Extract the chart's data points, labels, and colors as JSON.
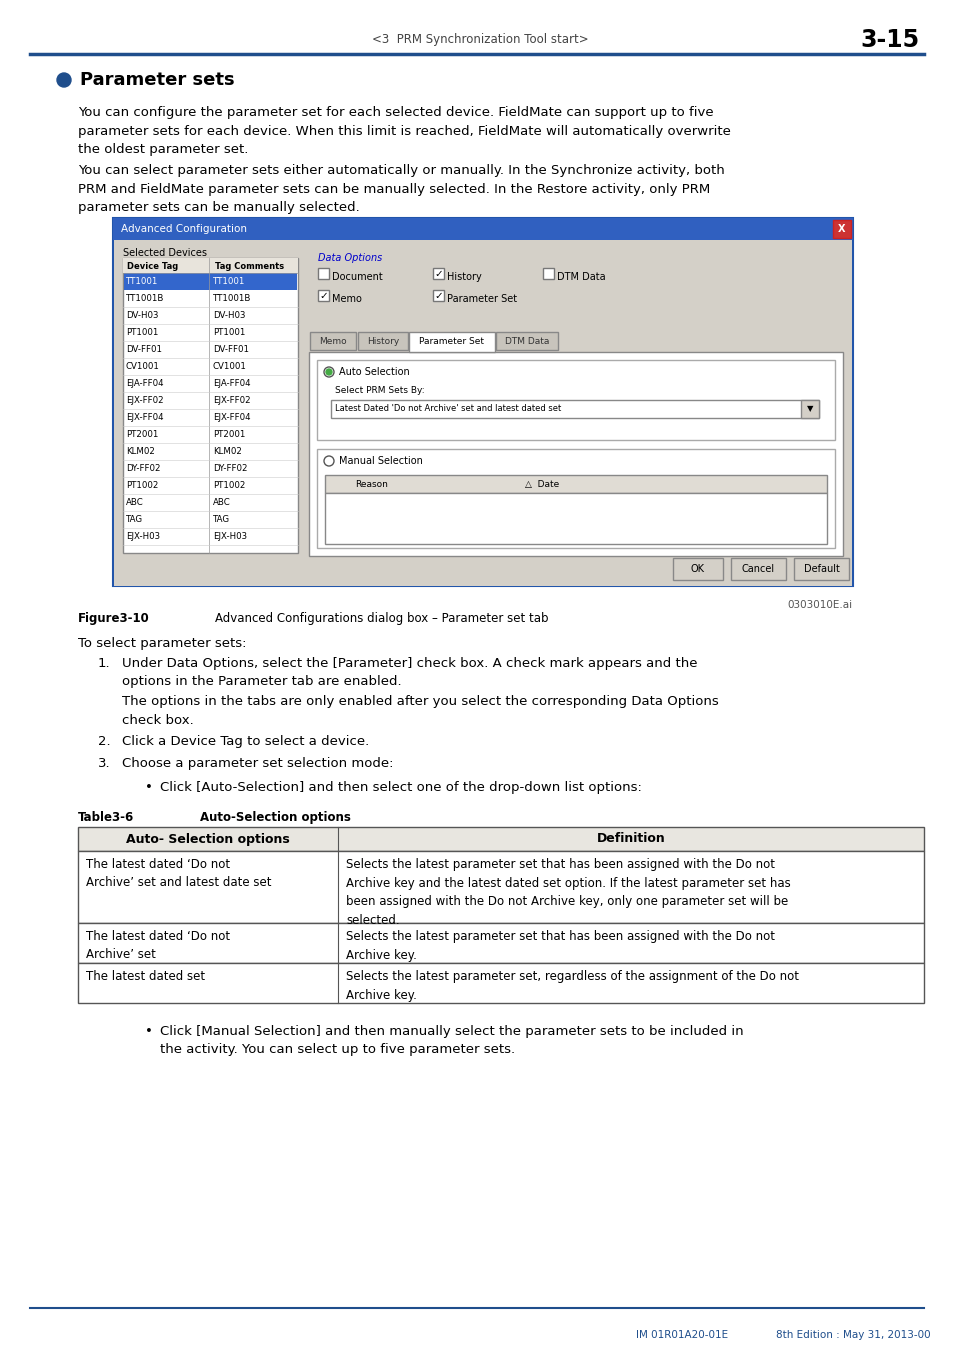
{
  "page_header_center": "<3  PRM Synchronization Tool start>",
  "page_header_right": "3-15",
  "header_line_color": "#1f4e8c",
  "section_bullet_color": "#1f4e8c",
  "section_title": "Parameter sets",
  "para1": "You can configure the parameter set for each selected device. FieldMate can support up to five\nparameter sets for each device. When this limit is reached, FieldMate will automatically overwrite\nthe oldest parameter set.",
  "para2": "You can select parameter sets either automatically or manually. In the Synchronize activity, both\nPRM and FieldMate parameter sets can be manually selected. In the Restore activity, only PRM\nparameter sets can be manually selected.",
  "figure_note": "0303010E.ai",
  "figure_label": "Figure3-10",
  "figure_caption": "Advanced Configurations dialog box – Parameter set tab",
  "steps_intro": "To select parameter sets:",
  "step1": "Under Data Options, select the [Parameter] check box. A check mark appears and the\noptions in the Parameter tab are enabled.",
  "step1_sub": "The options in the tabs are only enabled after you select the corresponding Data Options\ncheck box.",
  "step2": "Click a Device Tag to select a device.",
  "step3": "Choose a parameter set selection mode:",
  "bullet1": "Click [Auto-Selection] and then select one of the drop-down list options:",
  "table_label": "Table3-6",
  "table_title": "Auto-Selection options",
  "table_col1_header": "Auto- Selection options",
  "table_col2_header": "Definition",
  "table_rows": [
    {
      "col1": "The latest dated ‘Do not\nArchive’ set and latest date set",
      "col2": "Selects the latest parameter set that has been assigned with the Do not\nArchive key and the latest dated set option. If the latest parameter set has\nbeen assigned with the Do not Archive key, only one parameter set will be\nselected."
    },
    {
      "col1": "The latest dated ‘Do not\nArchive’ set",
      "col2": "Selects the latest parameter set that has been assigned with the Do not\nArchive key."
    },
    {
      "col1": "The latest dated set",
      "col2": "Selects the latest parameter set, regardless of the assignment of the Do not\nArchive key."
    }
  ],
  "bullet2": "Click [Manual Selection] and then manually select the parameter sets to be included in\nthe activity. You can select up to five parameter sets.",
  "footer_left": "IM 01R01A20-01E",
  "footer_mid": "8th Edition : May 31, 2013-00",
  "footer_line_color": "#1f4e8c",
  "body_font_size": 9.5,
  "devices": [
    [
      "TT1001",
      "TT1001",
      true
    ],
    [
      "TT1001B",
      "TT1001B",
      false
    ],
    [
      "DV-H03",
      "DV-H03",
      false
    ],
    [
      "PT1001",
      "PT1001",
      false
    ],
    [
      "DV-FF01",
      "DV-FF01",
      false
    ],
    [
      "CV1001",
      "CV1001",
      false
    ],
    [
      "EJA-FF04",
      "EJA-FF04",
      false
    ],
    [
      "EJX-FF02",
      "EJX-FF02",
      false
    ],
    [
      "EJX-FF04",
      "EJX-FF04",
      false
    ],
    [
      "PT2001",
      "PT2001",
      false
    ],
    [
      "KLM02",
      "KLM02",
      false
    ],
    [
      "DY-FF02",
      "DY-FF02",
      false
    ],
    [
      "PT1002",
      "PT1002",
      false
    ],
    [
      "ABC",
      "ABC",
      false
    ],
    [
      "TAG",
      "TAG",
      false
    ],
    [
      "EJX-H03",
      "EJX-H03",
      false
    ]
  ]
}
